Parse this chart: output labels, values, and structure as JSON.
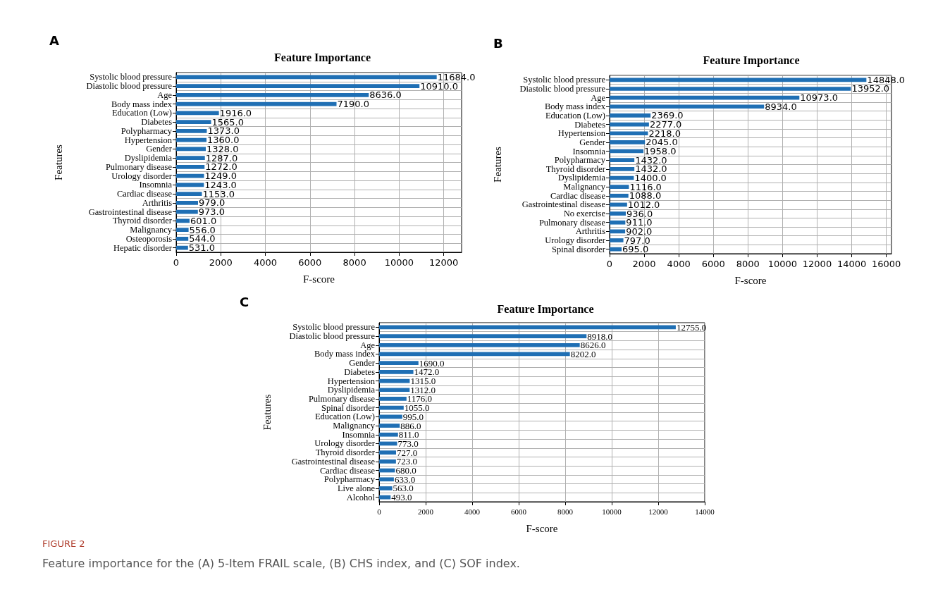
{
  "chart_data": [
    {
      "type": "bar",
      "orientation": "horizontal",
      "title": "Feature Importance",
      "xlabel": "F-score",
      "ylabel": "Features",
      "annotations": [
        "A"
      ],
      "grid": true,
      "categories": [
        "Systolic blood pressure",
        "Diastolic blood pressure",
        "Age",
        "Body mass index",
        "Education (Low)",
        "Diabetes",
        "Polypharmacy",
        "Hypertension",
        "Gender",
        "Dyslipidemia",
        "Pulmonary disease",
        "Urology disorder",
        "Insomnia",
        "Cardiac disease",
        "Arthritis",
        "Gastrointestinal disease",
        "Thyroid disorder",
        "Malignancy",
        "Osteoporosis",
        "Hepatic disorder"
      ],
      "values": [
        11684,
        10910,
        8636,
        7190,
        1916,
        1565,
        1373,
        1360,
        1328,
        1287,
        1272,
        1249,
        1243,
        1153,
        979,
        973,
        601,
        556,
        544,
        531
      ],
      "value_labels": [
        "11684.0",
        "10910.0",
        "8636.0",
        "7190.0",
        "1916.0",
        "1565.0",
        "1373.0",
        "1360.0",
        "1328.0",
        "1287.0",
        "1272.0",
        "1249.0",
        "1243.0",
        "1153.0",
        "979.0",
        "973.0",
        "601.0",
        "556.0",
        "544.0",
        "531.0"
      ],
      "color": "#1f6fb4",
      "xlim": [
        0,
        12800
      ],
      "xticks": [
        0,
        2000,
        4000,
        6000,
        8000,
        10000,
        12000
      ]
    },
    {
      "type": "bar",
      "orientation": "horizontal",
      "title": "Feature Importance",
      "xlabel": "F-score",
      "ylabel": "Features",
      "annotations": [
        "B"
      ],
      "grid": true,
      "categories": [
        "Systolic blood pressure",
        "Diastolic blood pressure",
        "Age",
        "Body mass index",
        "Education (Low)",
        "Diabetes",
        "Hypertension",
        "Gender",
        "Insomnia",
        "Polypharmacy",
        "Thyroid disorder",
        "Dyslipidemia",
        "Malignancy",
        "Cardiac disease",
        "Gastrointestinal disease",
        "No exercise",
        "Pulmonary disease",
        "Arthritis",
        "Urology disorder",
        "Spinal disorder"
      ],
      "values": [
        14848,
        13952,
        10973,
        8934,
        2369,
        2277,
        2218,
        2045,
        1958,
        1432,
        1432,
        1400,
        1116,
        1088,
        1012,
        936,
        911,
        902,
        797,
        695
      ],
      "value_labels": [
        "14848.0",
        "13952.0",
        "10973.0",
        "8934.0",
        "2369.0",
        "2277.0",
        "2218.0",
        "2045.0",
        "1958.0",
        "1432.0",
        "1432.0",
        "1400.0",
        "1116.0",
        "1088.0",
        "1012.0",
        "936.0",
        "911.0",
        "902.0",
        "797.0",
        "695.0"
      ],
      "color": "#1f6fb4",
      "xlim": [
        0,
        16300
      ],
      "xticks": [
        0,
        2000,
        4000,
        6000,
        8000,
        10000,
        12000,
        14000,
        16000
      ]
    },
    {
      "type": "bar",
      "orientation": "horizontal",
      "title": "Feature Importance",
      "xlabel": "F-score",
      "ylabel": "Features",
      "annotations": [
        "C",
        "FIGURE 2",
        "Feature importance for the (A) 5-Item FRAIL scale, (B) CHS index, and (C) SOF index."
      ],
      "grid": true,
      "categories": [
        "Systolic blood pressure",
        "Diastolic blood pressure",
        "Age",
        "Body mass index",
        "Gender",
        "Diabetes",
        "Hypertension",
        "Dyslipidemia",
        "Pulmonary disease",
        "Spinal disorder",
        "Education (Low)",
        "Malignancy",
        "Insomnia",
        "Urology disorder",
        "Thyroid disorder",
        "Gastrointestinal disease",
        "Cardiac disease",
        "Polypharmacy",
        "Live alone",
        "Alcohol"
      ],
      "values": [
        12755,
        8918,
        8626,
        8202,
        1690,
        1472,
        1315,
        1312,
        1176,
        1055,
        995,
        886,
        811,
        773,
        727,
        723,
        680,
        633,
        563,
        493
      ],
      "value_labels": [
        "12755.0",
        "8918.0",
        "8626.0",
        "8202.0",
        "1690.0",
        "1472.0",
        "1315.0",
        "1312.0",
        "1176.0",
        "1055.0",
        "995.0",
        "886.0",
        "811.0",
        "773.0",
        "727.0",
        "723.0",
        "680.0",
        "633.0",
        "563.0",
        "493.0"
      ],
      "color": "#1f6fb4",
      "xlim": [
        0,
        14000
      ],
      "xticks": [
        0,
        2000,
        4000,
        6000,
        8000,
        10000,
        12000,
        14000
      ]
    }
  ]
}
